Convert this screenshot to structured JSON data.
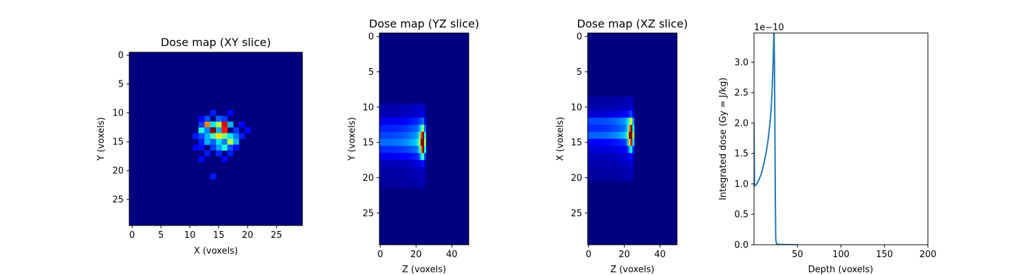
{
  "chart_data": [
    {
      "type": "heatmap",
      "title": "Dose map (XY slice)",
      "xlabel": "X (voxels)",
      "ylabel": "Y (voxels)",
      "xlim": [
        -0.5,
        29.5
      ],
      "ylim": [
        29.5,
        -0.5
      ],
      "xticks": [
        "0",
        "5",
        "10",
        "15",
        "20",
        "25"
      ],
      "yticks": [
        "0",
        "5",
        "10",
        "15",
        "20",
        "25"
      ],
      "colormap": "jet",
      "background": "#000080",
      "grid_size": [
        30,
        30
      ],
      "cells": [
        {
          "x": 13,
          "y": 12,
          "v": 0.75
        },
        {
          "x": 14,
          "y": 12,
          "v": 0.35
        },
        {
          "x": 15,
          "y": 12,
          "v": 0.55
        },
        {
          "x": 16,
          "y": 12,
          "v": 0.9
        },
        {
          "x": 17,
          "y": 12,
          "v": 0.3
        },
        {
          "x": 14,
          "y": 13,
          "v": 1.0
        },
        {
          "x": 15,
          "y": 13,
          "v": 0.3
        },
        {
          "x": 16,
          "y": 13,
          "v": 0.85
        },
        {
          "x": 12,
          "y": 13,
          "v": 0.4
        },
        {
          "x": 13,
          "y": 13,
          "v": 0.25
        },
        {
          "x": 14,
          "y": 14,
          "v": 0.45
        },
        {
          "x": 15,
          "y": 14,
          "v": 0.65
        },
        {
          "x": 16,
          "y": 14,
          "v": 0.5
        },
        {
          "x": 17,
          "y": 14,
          "v": 0.35
        },
        {
          "x": 13,
          "y": 14,
          "v": 0.3
        },
        {
          "x": 12,
          "y": 14,
          "v": 0.2
        },
        {
          "x": 18,
          "y": 14,
          "v": 0.25
        },
        {
          "x": 13,
          "y": 15,
          "v": 0.3
        },
        {
          "x": 15,
          "y": 15,
          "v": 0.35
        },
        {
          "x": 16,
          "y": 15,
          "v": 0.25
        },
        {
          "x": 17,
          "y": 15,
          "v": 0.55
        },
        {
          "x": 18,
          "y": 15,
          "v": 0.3
        },
        {
          "x": 14,
          "y": 15,
          "v": 0.22
        },
        {
          "x": 16,
          "y": 16,
          "v": 0.4
        },
        {
          "x": 15,
          "y": 16,
          "v": 0.28
        },
        {
          "x": 17,
          "y": 16,
          "v": 0.2
        },
        {
          "x": 14,
          "y": 16,
          "v": 0.18
        },
        {
          "x": 13,
          "y": 11,
          "v": 0.2
        },
        {
          "x": 15,
          "y": 11,
          "v": 0.22
        },
        {
          "x": 16,
          "y": 11,
          "v": 0.18
        },
        {
          "x": 12,
          "y": 12,
          "v": 0.18
        },
        {
          "x": 18,
          "y": 13,
          "v": 0.18
        },
        {
          "x": 11,
          "y": 14,
          "v": 0.15
        },
        {
          "x": 19,
          "y": 14,
          "v": 0.15
        },
        {
          "x": 12,
          "y": 15,
          "v": 0.15
        },
        {
          "x": 12,
          "y": 16,
          "v": 0.14
        },
        {
          "x": 13,
          "y": 17,
          "v": 0.15
        },
        {
          "x": 15,
          "y": 17,
          "v": 0.16
        },
        {
          "x": 17,
          "y": 17,
          "v": 0.15
        },
        {
          "x": 14,
          "y": 10,
          "v": 0.15
        },
        {
          "x": 17,
          "y": 10,
          "v": 0.13
        },
        {
          "x": 19,
          "y": 12,
          "v": 0.13
        },
        {
          "x": 20,
          "y": 13,
          "v": 0.13
        },
        {
          "x": 14,
          "y": 21,
          "v": 0.15
        },
        {
          "x": 12,
          "y": 18,
          "v": 0.13
        },
        {
          "x": 16,
          "y": 18,
          "v": 0.13
        },
        {
          "x": 18,
          "y": 16,
          "v": 0.13
        },
        {
          "x": 11,
          "y": 16,
          "v": 0.12
        },
        {
          "x": 12,
          "y": 11,
          "v": 0.12
        }
      ]
    },
    {
      "type": "heatmap",
      "title": "Dose map (YZ slice)",
      "xlabel": "Z (voxels)",
      "ylabel": "Y (voxels)",
      "xlim": [
        -0.5,
        49.5
      ],
      "ylim": [
        29.5,
        -0.5
      ],
      "xticks": [
        "0",
        "20",
        "40"
      ],
      "yticks": [
        "0",
        "5",
        "10",
        "15",
        "20",
        "25"
      ],
      "colormap": "jet",
      "background": "#000080",
      "profile_rows": [
        {
          "y": 10,
          "v": 0.08
        },
        {
          "y": 11,
          "v": 0.1
        },
        {
          "y": 12,
          "v": 0.2
        },
        {
          "y": 13,
          "v": 0.28
        },
        {
          "y": 14,
          "v": 0.35
        },
        {
          "y": 15,
          "v": 0.42
        },
        {
          "y": 16,
          "v": 0.3
        },
        {
          "y": 17,
          "v": 0.2
        },
        {
          "y": 18,
          "v": 0.1
        },
        {
          "y": 19,
          "v": 0.07
        },
        {
          "y": 20,
          "v": 0.06
        },
        {
          "y": 21,
          "v": 0.05
        }
      ],
      "peak": {
        "z": 24,
        "y": 15,
        "v": 1.0
      },
      "falloff_z": 25
    },
    {
      "type": "heatmap",
      "title": "Dose map (XZ slice)",
      "xlabel": "Z (voxels)",
      "ylabel": "X (voxels)",
      "xlim": [
        -0.5,
        49.5
      ],
      "ylim": [
        29.5,
        -0.5
      ],
      "xticks": [
        "0",
        "20",
        "40"
      ],
      "yticks": [
        "0",
        "5",
        "10",
        "15",
        "20",
        "25"
      ],
      "colormap": "jet",
      "background": "#000080",
      "profile_rows": [
        {
          "y": 9,
          "v": 0.06
        },
        {
          "y": 10,
          "v": 0.08
        },
        {
          "y": 11,
          "v": 0.15
        },
        {
          "y": 12,
          "v": 0.35
        },
        {
          "y": 13,
          "v": 0.3
        },
        {
          "y": 14,
          "v": 0.4
        },
        {
          "y": 15,
          "v": 0.22
        },
        {
          "y": 16,
          "v": 0.15
        },
        {
          "y": 17,
          "v": 0.1
        },
        {
          "y": 18,
          "v": 0.08
        },
        {
          "y": 19,
          "v": 0.06
        },
        {
          "y": 20,
          "v": 0.05
        }
      ],
      "peak": {
        "z": 24,
        "y": 14,
        "v": 1.0
      },
      "falloff_z": 25
    },
    {
      "type": "line",
      "title": "",
      "xlabel": "Depth (voxels)",
      "ylabel": "Integrated dose (Gy = J/kg)",
      "y_offset_label": "1e−10",
      "xlim": [
        0,
        200
      ],
      "ylim": [
        0,
        3.48
      ],
      "xticks": [
        "50",
        "100",
        "150",
        "200"
      ],
      "yticks": [
        "0.0",
        "0.5",
        "1.0",
        "1.5",
        "2.0",
        "2.5",
        "3.0"
      ],
      "series": [
        {
          "color": "#1f77b4",
          "x": [
            0,
            0.5,
            1,
            2,
            4,
            6,
            8,
            10,
            12,
            14,
            16,
            18,
            19,
            20,
            21,
            22,
            22.5,
            23,
            23.5,
            24,
            24.5,
            25,
            25.5,
            26,
            27,
            28,
            30,
            35,
            40,
            45,
            50
          ],
          "y": [
            2.0,
            1.0,
            0.97,
            0.98,
            1.02,
            1.08,
            1.15,
            1.25,
            1.37,
            1.52,
            1.7,
            1.95,
            2.1,
            2.3,
            2.6,
            3.0,
            3.3,
            3.6,
            3.0,
            2.0,
            0.8,
            0.1,
            0.04,
            0.02,
            0.012,
            0.008,
            0.005,
            0.003,
            0.002,
            0.001,
            0.0
          ]
        }
      ]
    }
  ]
}
